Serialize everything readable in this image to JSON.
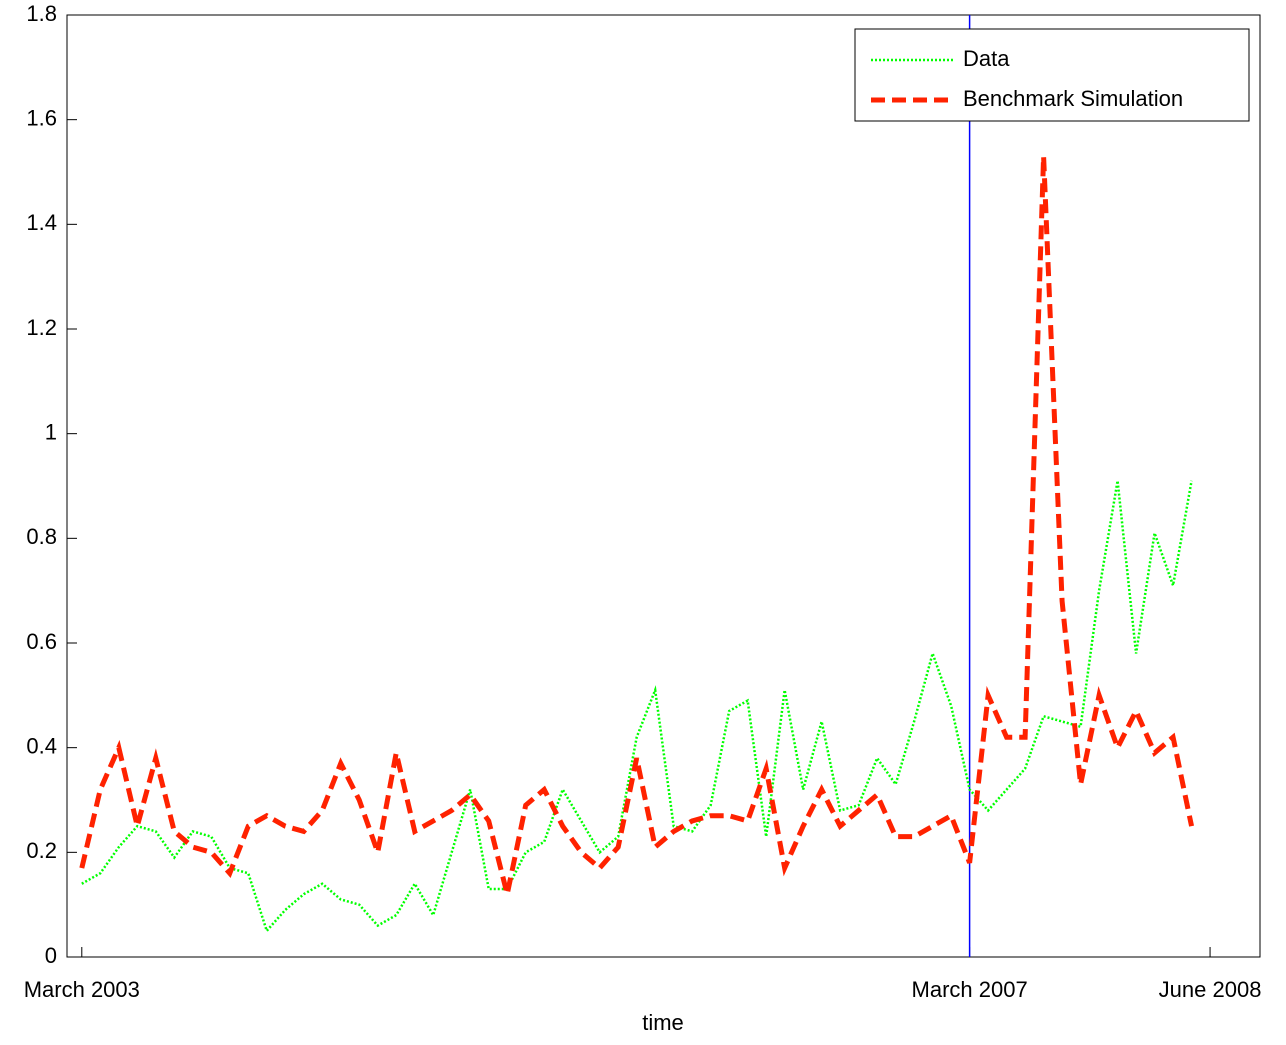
{
  "chart_data": {
    "type": "line",
    "x_label": "time",
    "x": [
      0,
      1,
      2,
      3,
      4,
      5,
      6,
      7,
      8,
      9,
      10,
      11,
      12,
      13,
      14,
      15,
      16,
      17,
      18,
      19,
      20,
      21,
      22,
      23,
      24,
      25,
      26,
      27,
      28,
      29,
      30,
      31,
      32,
      33,
      34,
      35,
      36,
      37,
      38,
      39,
      40,
      41,
      42,
      43,
      44,
      45,
      46,
      47,
      48,
      49,
      50,
      51,
      52,
      53,
      54,
      55,
      56,
      57,
      58,
      59,
      60
    ],
    "series": [
      {
        "name": "Data",
        "color": "#00ff00",
        "style": "dotted",
        "values": [
          0.14,
          0.16,
          0.21,
          0.25,
          0.24,
          0.19,
          0.24,
          0.23,
          0.17,
          0.16,
          0.05,
          0.09,
          0.12,
          0.14,
          0.11,
          0.1,
          0.06,
          0.08,
          0.14,
          0.08,
          0.2,
          0.32,
          0.13,
          0.13,
          0.2,
          0.22,
          0.32,
          0.26,
          0.2,
          0.23,
          0.42,
          0.51,
          0.25,
          0.24,
          0.29,
          0.47,
          0.49,
          0.23,
          0.51,
          0.32,
          0.45,
          0.28,
          0.29,
          0.38,
          0.33,
          0.45,
          0.58,
          0.48,
          0.32,
          0.28,
          0.32,
          0.36,
          0.46,
          0.45,
          0.44,
          0.7,
          0.91,
          0.58,
          0.81,
          0.71,
          0.91
        ]
      },
      {
        "name": "Benchmark Simulation",
        "color": "#ff2200",
        "style": "dashed",
        "values": [
          0.17,
          0.32,
          0.4,
          0.25,
          0.38,
          0.24,
          0.21,
          0.2,
          0.16,
          0.25,
          0.27,
          0.25,
          0.24,
          0.28,
          0.37,
          0.3,
          0.2,
          0.39,
          0.24,
          0.26,
          0.28,
          0.31,
          0.26,
          0.12,
          0.29,
          0.32,
          0.25,
          0.2,
          0.17,
          0.21,
          0.38,
          0.21,
          0.24,
          0.26,
          0.27,
          0.27,
          0.26,
          0.36,
          0.17,
          0.25,
          0.32,
          0.25,
          0.28,
          0.31,
          0.23,
          0.23,
          0.25,
          0.27,
          0.18,
          0.5,
          0.42,
          0.42,
          1.53,
          0.68,
          0.33,
          0.5,
          0.4,
          0.47,
          0.39,
          0.42,
          0.25
        ]
      }
    ],
    "vline": {
      "x": 48,
      "color": "#0000ff"
    },
    "xlim": [
      -0.8,
      63.7
    ],
    "xticks": [
      {
        "value": 0,
        "label": "March 2003"
      },
      {
        "value": 48,
        "label": "March 2007"
      },
      {
        "value": 61,
        "label": "June 2008"
      }
    ],
    "ylim": [
      0,
      1.8
    ],
    "yticks": [
      0,
      0.2,
      0.4,
      0.6,
      0.8,
      1,
      1.2,
      1.4,
      1.6,
      1.8
    ],
    "legend": "upper right"
  }
}
